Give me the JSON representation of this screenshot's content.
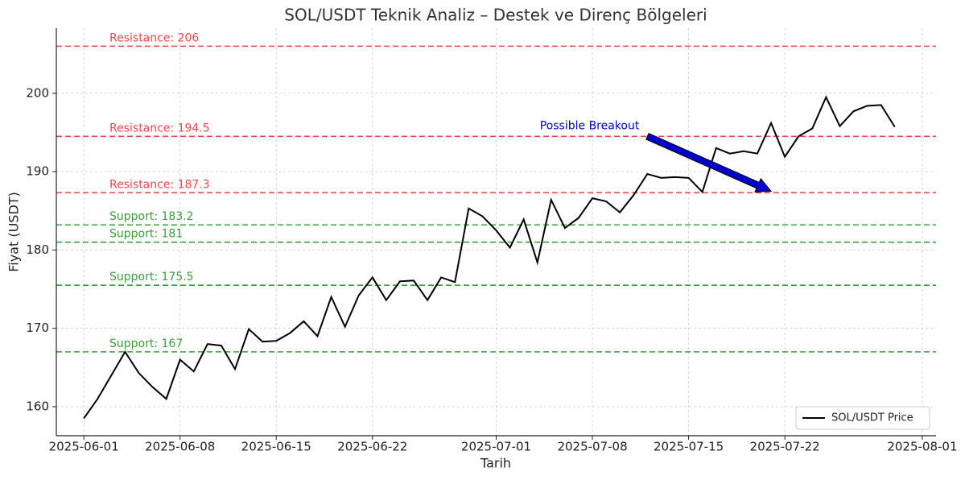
{
  "chart_data": {
    "type": "line",
    "title": "SOL/USDT Teknik Analiz – Destek ve Direnç Bölgeleri",
    "x_label": "Tarih",
    "y_label": "Fiyat (USDT)",
    "x": [
      "2025-06-01",
      "2025-06-02",
      "2025-06-03",
      "2025-06-04",
      "2025-06-05",
      "2025-06-06",
      "2025-06-07",
      "2025-06-08",
      "2025-06-09",
      "2025-06-10",
      "2025-06-11",
      "2025-06-12",
      "2025-06-13",
      "2025-06-14",
      "2025-06-15",
      "2025-06-16",
      "2025-06-17",
      "2025-06-18",
      "2025-06-19",
      "2025-06-20",
      "2025-06-21",
      "2025-06-22",
      "2025-06-23",
      "2025-06-24",
      "2025-06-25",
      "2025-06-26",
      "2025-06-27",
      "2025-06-28",
      "2025-06-29",
      "2025-06-30",
      "2025-07-01",
      "2025-07-02",
      "2025-07-03",
      "2025-07-04",
      "2025-07-05",
      "2025-07-06",
      "2025-07-07",
      "2025-07-08",
      "2025-07-09",
      "2025-07-10",
      "2025-07-11",
      "2025-07-12",
      "2025-07-13",
      "2025-07-14",
      "2025-07-15",
      "2025-07-16",
      "2025-07-17",
      "2025-07-18",
      "2025-07-19",
      "2025-07-20",
      "2025-07-21",
      "2025-07-22",
      "2025-07-23",
      "2025-07-24",
      "2025-07-25",
      "2025-07-26",
      "2025-07-27",
      "2025-07-28",
      "2025-07-29",
      "2025-07-30"
    ],
    "series": [
      {
        "name": "SOL/USDT Price",
        "color": "#000000",
        "values": [
          158.5,
          161,
          164,
          167,
          164.3,
          162.5,
          161,
          166,
          164.5,
          168,
          167.8,
          164.8,
          169.9,
          168.3,
          168.4,
          169.4,
          170.9,
          169,
          174,
          170.2,
          174.2,
          176.5,
          173.6,
          176,
          176.1,
          173.6,
          176.5,
          175.9,
          185.3,
          184.3,
          182.5,
          180.3,
          183.9,
          178.4,
          186.4,
          182.8,
          184.1,
          186.6,
          186.2,
          184.8,
          187,
          189.7,
          189.2,
          189.3,
          189.2,
          187.4,
          193,
          192.3,
          192.6,
          192.3,
          196.2,
          191.9,
          194.5,
          195.5,
          199.5,
          195.8,
          197.7,
          198.4,
          198.5,
          195.7
        ]
      }
    ],
    "resistance": {
      "color": "#e8474c",
      "levels": [
        {
          "value": 206,
          "label": "Resistance: 206"
        },
        {
          "value": 194.5,
          "label": "Resistance: 194.5"
        },
        {
          "value": 187.3,
          "label": "Resistance: 187.3"
        }
      ]
    },
    "support": {
      "color": "#3a9e3a",
      "levels": [
        {
          "value": 183.2,
          "label": "Support: 183.2"
        },
        {
          "value": 181,
          "label": "Support: 181"
        },
        {
          "value": 175.5,
          "label": "Support: 175.5"
        },
        {
          "value": 167,
          "label": "Support: 167"
        }
      ]
    },
    "annotation": {
      "text": "Possible Breakout",
      "color": "#0000cc",
      "xy": [
        "2025-07-21",
        187.5
      ],
      "xytext": [
        "2025-07-12",
        194.5
      ]
    },
    "xlim": [
      "2025-05-30",
      "2025-08-02"
    ],
    "ylim": [
      156.3,
      208.3
    ],
    "xticks": [
      "2025-06-01",
      "2025-06-08",
      "2025-06-15",
      "2025-06-22",
      "2025-07-01",
      "2025-07-08",
      "2025-07-15",
      "2025-07-22",
      "2025-08-01"
    ],
    "yticks": [
      160,
      170,
      180,
      190,
      200
    ],
    "grid": true,
    "legend": "lower right"
  }
}
